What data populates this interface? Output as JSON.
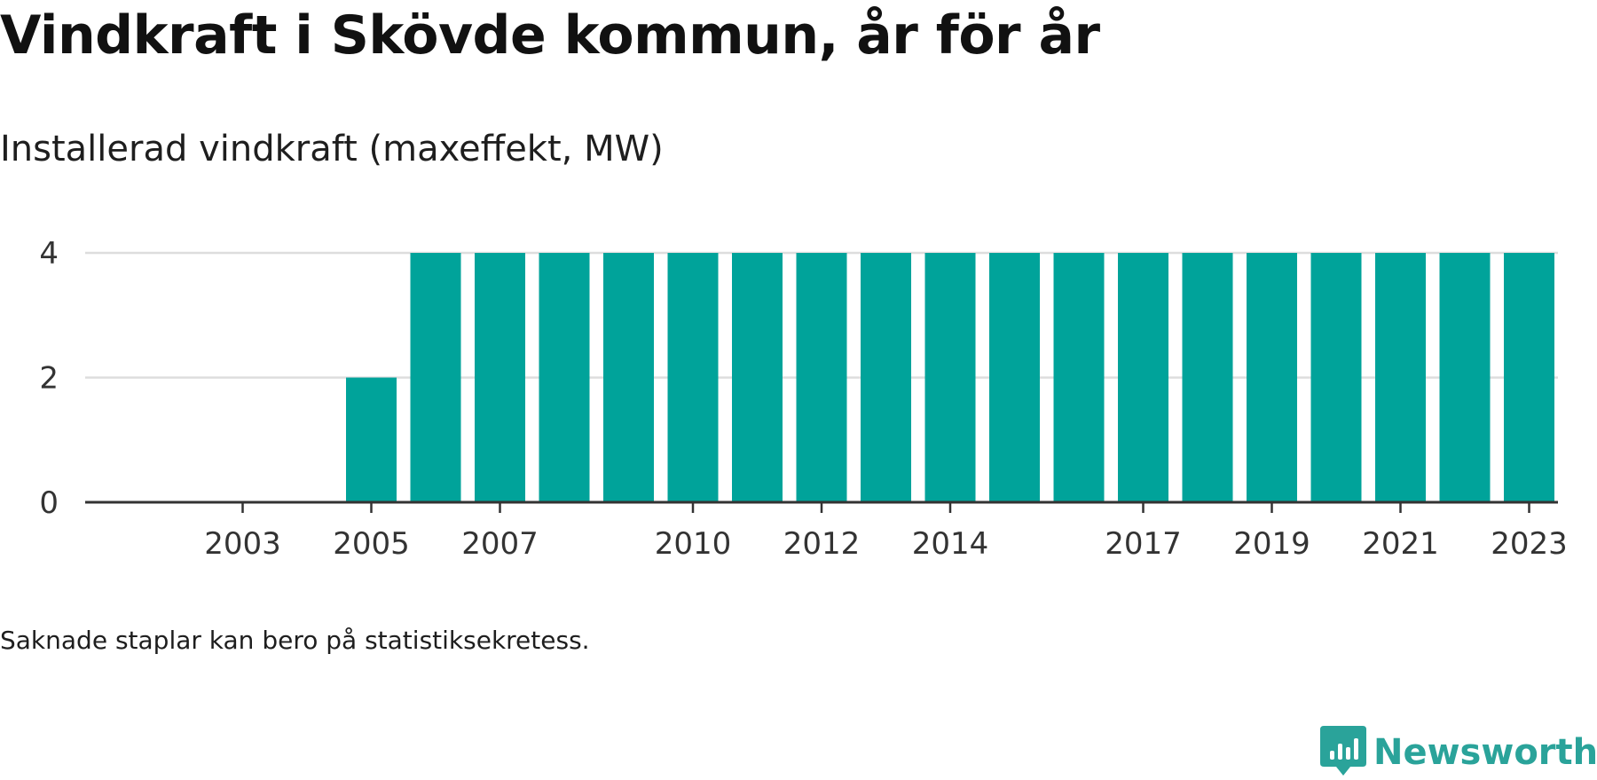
{
  "title": "Vindkraft i Skövde kommun, år för år",
  "subtitle": "Installerad vindkraft (maxeffekt, MW)",
  "note": "Saknade staplar kan bero på statistiksekretess.",
  "brand": {
    "name": "Newsworthy",
    "color": "#2aa39a",
    "icon": "newsworthy-logo-icon"
  },
  "colors": {
    "bar": "#00a39a",
    "grid": "#dddddd",
    "axis": "#333333"
  },
  "chart_data": {
    "type": "bar",
    "title": "Vindkraft i Skövde kommun, år för år",
    "subtitle": "Installerad vindkraft (maxeffekt, MW)",
    "xlabel": "",
    "ylabel": "",
    "categories": [
      "2002",
      "2003",
      "2004",
      "2005",
      "2006",
      "2007",
      "2008",
      "2009",
      "2010",
      "2011",
      "2012",
      "2013",
      "2014",
      "2015",
      "2016",
      "2017",
      "2018",
      "2019",
      "2020",
      "2021",
      "2022",
      "2023"
    ],
    "values": [
      0,
      0,
      0,
      2,
      4,
      4,
      4,
      4,
      4,
      4,
      4,
      4,
      4,
      4,
      4,
      4,
      4,
      4,
      4,
      4,
      4,
      4
    ],
    "x_tick_labels": [
      "2003",
      "2005",
      "2007",
      "2010",
      "2012",
      "2014",
      "2017",
      "2019",
      "2021",
      "2023"
    ],
    "y_ticks": [
      0,
      2,
      4
    ],
    "ylim": [
      0,
      4
    ],
    "grid": true,
    "legend": "none"
  }
}
